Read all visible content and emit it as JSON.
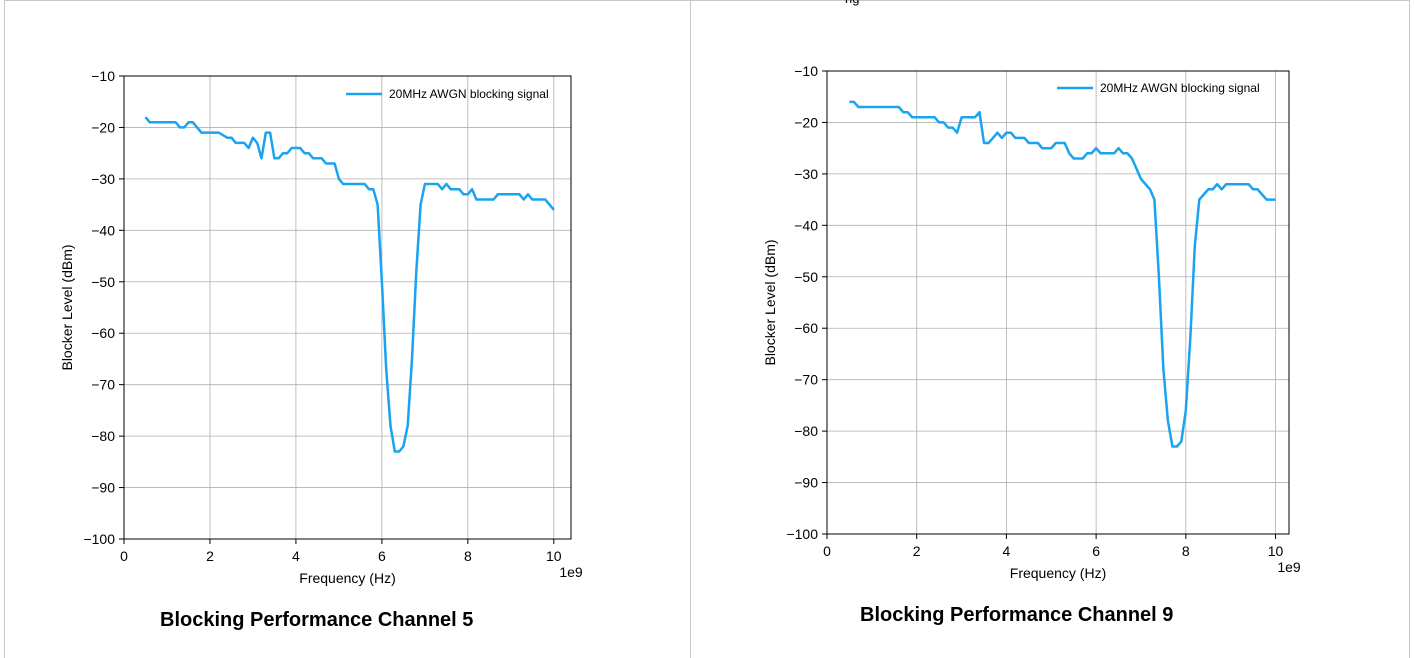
{
  "header_fragment": "ng",
  "chart_data": [
    {
      "type": "line",
      "title": "Blocking Performance Channel 5",
      "xlabel": "Frequency (Hz)",
      "ylabel": "Blocker Level (dBm)",
      "x_offset_label": "1e9",
      "xlim": [
        0,
        10.4
      ],
      "ylim": [
        -100,
        -10
      ],
      "xticks": [
        0,
        2,
        4,
        6,
        8,
        10
      ],
      "yticks": [
        -100,
        -90,
        -80,
        -70,
        -60,
        -50,
        -40,
        -30,
        -20,
        -10
      ],
      "xtick_labels": [
        "0",
        "2",
        "4",
        "6",
        "8",
        "10"
      ],
      "ytick_labels": [
        "−100",
        "−90",
        "−80",
        "−70",
        "−60",
        "−50",
        "−40",
        "−30",
        "−20",
        "−10"
      ],
      "grid": true,
      "legend": "top-right",
      "line_color": "#1aa3f0",
      "series": [
        {
          "name": "20MHz AWGN blocking signal",
          "x": [
            0.5,
            0.6,
            0.8,
            1.0,
            1.2,
            1.3,
            1.4,
            1.5,
            1.6,
            1.7,
            1.8,
            1.9,
            2.0,
            2.2,
            2.4,
            2.5,
            2.6,
            2.7,
            2.8,
            2.9,
            3.0,
            3.1,
            3.2,
            3.3,
            3.35,
            3.4,
            3.5,
            3.6,
            3.7,
            3.8,
            3.9,
            4.0,
            4.1,
            4.2,
            4.3,
            4.4,
            4.5,
            4.6,
            4.7,
            4.8,
            4.9,
            5.0,
            5.1,
            5.2,
            5.4,
            5.6,
            5.7,
            5.8,
            5.9,
            6.0,
            6.1,
            6.2,
            6.3,
            6.4,
            6.5,
            6.6,
            6.7,
            6.8,
            6.9,
            7.0,
            7.1,
            7.2,
            7.3,
            7.4,
            7.5,
            7.6,
            7.7,
            7.8,
            7.9,
            8.0,
            8.1,
            8.2,
            8.3,
            8.4,
            8.5,
            8.6,
            8.7,
            8.8,
            8.9,
            9.0,
            9.1,
            9.2,
            9.3,
            9.4,
            9.5,
            9.6,
            9.7,
            9.8,
            9.9,
            10.0
          ],
          "y": [
            -18,
            -19,
            -19,
            -19,
            -19,
            -20,
            -20,
            -19,
            -19,
            -20,
            -21,
            -21,
            -21,
            -21,
            -22,
            -22,
            -23,
            -23,
            -23,
            -24,
            -22,
            -23,
            -26,
            -21,
            -21,
            -21,
            -26,
            -26,
            -25,
            -25,
            -24,
            -24,
            -24,
            -25,
            -25,
            -26,
            -26,
            -26,
            -27,
            -27,
            -27,
            -30,
            -31,
            -31,
            -31,
            -31,
            -32,
            -32,
            -35,
            -50,
            -67,
            -78,
            -83,
            -83,
            -82,
            -78,
            -65,
            -48,
            -35,
            -31,
            -31,
            -31,
            -31,
            -32,
            -31,
            -32,
            -32,
            -32,
            -33,
            -33,
            -32,
            -34,
            -34,
            -34,
            -34,
            -34,
            -33,
            -33,
            -33,
            -33,
            -33,
            -33,
            -34,
            -33,
            -34,
            -34,
            -34,
            -34,
            -35,
            -36
          ]
        }
      ]
    },
    {
      "type": "line",
      "title": "Blocking Performance Channel 9",
      "xlabel": "Frequency (Hz)",
      "ylabel": "Blocker Level (dBm)",
      "x_offset_label": "1e9",
      "xlim": [
        0,
        10.3
      ],
      "ylim": [
        -100,
        -10
      ],
      "xticks": [
        0,
        2,
        4,
        6,
        8,
        10
      ],
      "yticks": [
        -100,
        -90,
        -80,
        -70,
        -60,
        -50,
        -40,
        -30,
        -20,
        -10
      ],
      "xtick_labels": [
        "0",
        "2",
        "4",
        "6",
        "8",
        "10"
      ],
      "ytick_labels": [
        "−100",
        "−90",
        "−80",
        "−70",
        "−60",
        "−50",
        "−40",
        "−30",
        "−20",
        "−10"
      ],
      "grid": true,
      "legend": "top-right",
      "line_color": "#1aa3f0",
      "series": [
        {
          "name": "20MHz AWGN blocking signal",
          "x": [
            0.5,
            0.6,
            0.7,
            0.8,
            1.0,
            1.2,
            1.4,
            1.6,
            1.7,
            1.8,
            1.9,
            2.0,
            2.2,
            2.4,
            2.5,
            2.6,
            2.7,
            2.8,
            2.9,
            3.0,
            3.1,
            3.2,
            3.3,
            3.4,
            3.5,
            3.6,
            3.7,
            3.8,
            3.9,
            4.0,
            4.1,
            4.2,
            4.3,
            4.4,
            4.5,
            4.6,
            4.7,
            4.8,
            4.9,
            5.0,
            5.1,
            5.2,
            5.3,
            5.4,
            5.5,
            5.6,
            5.7,
            5.8,
            5.9,
            6.0,
            6.1,
            6.2,
            6.3,
            6.4,
            6.5,
            6.6,
            6.7,
            6.8,
            6.9,
            7.0,
            7.1,
            7.2,
            7.3,
            7.4,
            7.5,
            7.6,
            7.7,
            7.8,
            7.9,
            8.0,
            8.1,
            8.2,
            8.3,
            8.4,
            8.5,
            8.6,
            8.7,
            8.8,
            8.9,
            9.0,
            9.1,
            9.2,
            9.3,
            9.4,
            9.5,
            9.6,
            9.7,
            9.8,
            9.9,
            10.0
          ],
          "y": [
            -16,
            -16,
            -17,
            -17,
            -17,
            -17,
            -17,
            -17,
            -18,
            -18,
            -19,
            -19,
            -19,
            -19,
            -20,
            -20,
            -21,
            -21,
            -22,
            -19,
            -19,
            -19,
            -19,
            -18,
            -24,
            -24,
            -23,
            -22,
            -23,
            -22,
            -22,
            -23,
            -23,
            -23,
            -24,
            -24,
            -24,
            -25,
            -25,
            -25,
            -24,
            -24,
            -24,
            -26,
            -27,
            -27,
            -27,
            -26,
            -26,
            -25,
            -26,
            -26,
            -26,
            -26,
            -25,
            -26,
            -26,
            -27,
            -29,
            -31,
            -32,
            -33,
            -35,
            -50,
            -68,
            -78,
            -83,
            -83,
            -82,
            -76,
            -62,
            -44,
            -35,
            -34,
            -33,
            -33,
            -32,
            -33,
            -32,
            -32,
            -32,
            -32,
            -32,
            -32,
            -33,
            -33,
            -34,
            -35,
            -35,
            -35
          ]
        }
      ]
    }
  ]
}
